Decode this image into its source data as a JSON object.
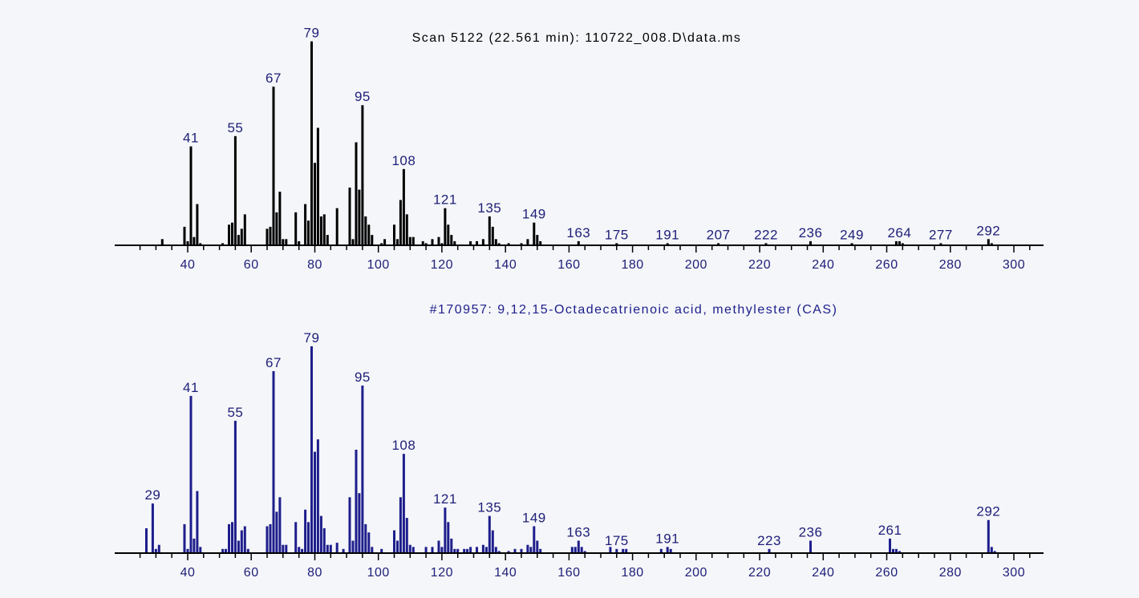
{
  "colors": {
    "background": "#f4f6f9",
    "sample_bars": "#000000",
    "library_bars": "#1e1e8c",
    "label_text": "#1e1e78"
  },
  "chart_data": [
    {
      "type": "bar",
      "title": "Scan 5122 (22.561 min): 110722_008.D\\data.ms",
      "xlim": [
        25,
        305
      ],
      "ylim": [
        0,
        100
      ],
      "grid": false,
      "x_ticks": [
        40,
        60,
        80,
        100,
        120,
        140,
        160,
        180,
        200,
        220,
        240,
        260,
        280,
        300
      ],
      "labeled_peaks": [
        41,
        55,
        67,
        79,
        95,
        108,
        121,
        135,
        149,
        163,
        175,
        191,
        207,
        222,
        236,
        249,
        264,
        277,
        292
      ],
      "peaks": [
        [
          32,
          3
        ],
        [
          39,
          9
        ],
        [
          40,
          2
        ],
        [
          41,
          48
        ],
        [
          42,
          4
        ],
        [
          43,
          20
        ],
        [
          44,
          1
        ],
        [
          51,
          1
        ],
        [
          53,
          10
        ],
        [
          54,
          11
        ],
        [
          55,
          53
        ],
        [
          56,
          5
        ],
        [
          57,
          8
        ],
        [
          58,
          15
        ],
        [
          65,
          8
        ],
        [
          66,
          9
        ],
        [
          67,
          77
        ],
        [
          68,
          16
        ],
        [
          69,
          26
        ],
        [
          70,
          3
        ],
        [
          71,
          3
        ],
        [
          74,
          16
        ],
        [
          75,
          2
        ],
        [
          77,
          20
        ],
        [
          78,
          12
        ],
        [
          79,
          99
        ],
        [
          80,
          40
        ],
        [
          81,
          57
        ],
        [
          82,
          14
        ],
        [
          83,
          15
        ],
        [
          84,
          5
        ],
        [
          87,
          18
        ],
        [
          91,
          28
        ],
        [
          92,
          3
        ],
        [
          93,
          50
        ],
        [
          94,
          27
        ],
        [
          95,
          68
        ],
        [
          96,
          14
        ],
        [
          97,
          10
        ],
        [
          98,
          5
        ],
        [
          101,
          1
        ],
        [
          102,
          3
        ],
        [
          105,
          10
        ],
        [
          106,
          3
        ],
        [
          107,
          22
        ],
        [
          108,
          37
        ],
        [
          109,
          15
        ],
        [
          110,
          4
        ],
        [
          111,
          4
        ],
        [
          114,
          2
        ],
        [
          115,
          1
        ],
        [
          117,
          3
        ],
        [
          119,
          4
        ],
        [
          120,
          1
        ],
        [
          121,
          18
        ],
        [
          122,
          10
        ],
        [
          123,
          5
        ],
        [
          124,
          2
        ],
        [
          129,
          2
        ],
        [
          131,
          2
        ],
        [
          133,
          3
        ],
        [
          135,
          14
        ],
        [
          136,
          9
        ],
        [
          137,
          3
        ],
        [
          138,
          1
        ],
        [
          141,
          1
        ],
        [
          145,
          1
        ],
        [
          147,
          3
        ],
        [
          149,
          11
        ],
        [
          150,
          5
        ],
        [
          151,
          2
        ],
        [
          163,
          2
        ],
        [
          175,
          1
        ],
        [
          191,
          1
        ],
        [
          207,
          1
        ],
        [
          222,
          1
        ],
        [
          236,
          2
        ],
        [
          249,
          1
        ],
        [
          263,
          2
        ],
        [
          264,
          2
        ],
        [
          265,
          1
        ],
        [
          277,
          1
        ],
        [
          292,
          3
        ],
        [
          293,
          1
        ]
      ]
    },
    {
      "type": "bar",
      "title": "#170957: 9,12,15-Octadecatrienoic acid, methylester (CAS)",
      "xlim": [
        25,
        305
      ],
      "ylim": [
        0,
        100
      ],
      "grid": false,
      "x_ticks": [
        40,
        60,
        80,
        100,
        120,
        140,
        160,
        180,
        200,
        220,
        240,
        260,
        280,
        300
      ],
      "labeled_peaks": [
        29,
        41,
        55,
        67,
        79,
        95,
        108,
        121,
        135,
        149,
        163,
        175,
        191,
        223,
        236,
        261,
        292
      ],
      "peaks": [
        [
          27,
          12
        ],
        [
          29,
          24
        ],
        [
          30,
          2
        ],
        [
          31,
          4
        ],
        [
          39,
          14
        ],
        [
          40,
          2
        ],
        [
          41,
          76
        ],
        [
          42,
          7
        ],
        [
          43,
          30
        ],
        [
          44,
          3
        ],
        [
          51,
          2
        ],
        [
          52,
          2
        ],
        [
          53,
          14
        ],
        [
          54,
          15
        ],
        [
          55,
          64
        ],
        [
          56,
          6
        ],
        [
          57,
          11
        ],
        [
          58,
          13
        ],
        [
          59,
          2
        ],
        [
          65,
          13
        ],
        [
          66,
          14
        ],
        [
          67,
          88
        ],
        [
          68,
          20
        ],
        [
          69,
          27
        ],
        [
          70,
          4
        ],
        [
          71,
          4
        ],
        [
          74,
          15
        ],
        [
          75,
          3
        ],
        [
          76,
          2
        ],
        [
          77,
          21
        ],
        [
          78,
          15
        ],
        [
          79,
          100
        ],
        [
          80,
          49
        ],
        [
          81,
          55
        ],
        [
          82,
          18
        ],
        [
          83,
          12
        ],
        [
          84,
          4
        ],
        [
          85,
          4
        ],
        [
          87,
          5
        ],
        [
          89,
          2
        ],
        [
          91,
          27
        ],
        [
          92,
          6
        ],
        [
          93,
          50
        ],
        [
          94,
          29
        ],
        [
          95,
          81
        ],
        [
          96,
          14
        ],
        [
          97,
          10
        ],
        [
          98,
          3
        ],
        [
          101,
          2
        ],
        [
          105,
          11
        ],
        [
          106,
          6
        ],
        [
          107,
          27
        ],
        [
          108,
          48
        ],
        [
          109,
          17
        ],
        [
          110,
          4
        ],
        [
          111,
          3
        ],
        [
          115,
          3
        ],
        [
          117,
          3
        ],
        [
          119,
          6
        ],
        [
          120,
          3
        ],
        [
          121,
          22
        ],
        [
          122,
          15
        ],
        [
          123,
          7
        ],
        [
          124,
          2
        ],
        [
          125,
          2
        ],
        [
          127,
          2
        ],
        [
          128,
          2
        ],
        [
          129,
          3
        ],
        [
          131,
          3
        ],
        [
          133,
          4
        ],
        [
          134,
          3
        ],
        [
          135,
          18
        ],
        [
          136,
          11
        ],
        [
          137,
          3
        ],
        [
          138,
          1
        ],
        [
          141,
          1
        ],
        [
          143,
          2
        ],
        [
          145,
          2
        ],
        [
          147,
          4
        ],
        [
          148,
          3
        ],
        [
          149,
          13
        ],
        [
          150,
          6
        ],
        [
          151,
          2
        ],
        [
          161,
          3
        ],
        [
          162,
          3
        ],
        [
          163,
          6
        ],
        [
          164,
          3
        ],
        [
          165,
          1
        ],
        [
          173,
          3
        ],
        [
          175,
          2
        ],
        [
          177,
          2
        ],
        [
          178,
          2
        ],
        [
          189,
          2
        ],
        [
          191,
          3
        ],
        [
          192,
          2
        ],
        [
          223,
          2
        ],
        [
          236,
          6
        ],
        [
          261,
          7
        ],
        [
          262,
          2
        ],
        [
          263,
          2
        ],
        [
          264,
          1
        ],
        [
          292,
          16
        ],
        [
          293,
          3
        ],
        [
          294,
          1
        ]
      ]
    }
  ]
}
